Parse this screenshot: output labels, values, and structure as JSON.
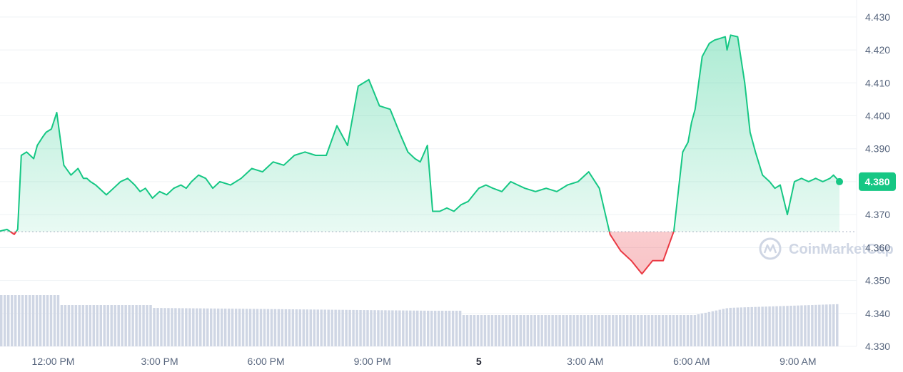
{
  "chart_data": {
    "type": "area",
    "baseline": 4.3648,
    "last_price_label": "4.380",
    "y_ticks": [
      "4.430",
      "4.420",
      "4.410",
      "4.400",
      "4.390",
      "4.380",
      "4.370",
      "4.360",
      "4.350",
      "4.340",
      "4.330"
    ],
    "ylim": [
      4.33,
      4.433
    ],
    "x_ticks": [
      {
        "label": "12:00 PM",
        "pos": 0.0,
        "bold": false
      },
      {
        "label": "3:00 PM",
        "pos": 3.0,
        "bold": false
      },
      {
        "label": "6:00 PM",
        "pos": 6.0,
        "bold": false
      },
      {
        "label": "9:00 PM",
        "pos": 9.0,
        "bold": false
      },
      {
        "label": "5",
        "pos": 12.0,
        "bold": true
      },
      {
        "label": "3:00 AM",
        "pos": 15.0,
        "bold": false
      },
      {
        "label": "6:00 AM",
        "pos": 18.0,
        "bold": false
      },
      {
        "label": "9:00 AM",
        "pos": 21.0,
        "bold": false
      }
    ],
    "x_range_hours": [
      -1.5,
      22.17
    ],
    "watermark": "CoinMarketCap",
    "colors": {
      "up": "#16c784",
      "down": "#ea3943",
      "grid": "#eff2f5",
      "volume": "#cfd6e4"
    },
    "series": [
      {
        "x": [
          -1.5,
          -1.3,
          -1.1,
          -1.0,
          -0.9,
          -0.75,
          -0.55,
          -0.45,
          -0.3,
          -0.2,
          -0.05,
          0.1,
          0.3,
          0.5,
          0.7,
          0.85,
          0.95,
          1.05,
          1.2,
          1.5,
          1.7,
          1.9,
          2.1,
          2.3,
          2.45,
          2.6,
          2.8,
          3.0,
          3.2,
          3.4,
          3.6,
          3.75,
          3.9,
          4.1,
          4.3,
          4.5,
          4.7,
          5.0,
          5.3,
          5.6,
          5.9,
          6.2,
          6.5,
          6.8,
          7.1,
          7.4,
          7.7,
          8.0,
          8.3,
          8.6,
          8.9,
          9.2,
          9.5,
          9.8,
          10.0,
          10.2,
          10.35,
          10.55,
          10.7,
          10.9,
          11.1,
          11.3,
          11.5,
          11.7,
          11.85,
          12.0,
          12.2,
          12.4,
          12.65,
          12.9,
          13.1,
          13.3,
          13.6,
          13.9,
          14.2,
          14.5,
          14.8,
          15.1,
          15.4,
          15.7,
          16.0,
          16.3,
          16.6,
          16.9,
          17.2,
          17.5,
          17.75,
          17.9,
          18.0,
          18.1,
          18.3,
          18.5,
          18.65,
          18.8,
          18.95,
          19.0,
          19.1,
          19.3,
          19.5,
          19.65,
          19.8,
          20.0,
          20.2,
          20.35,
          20.5,
          20.7,
          20.9,
          21.1,
          21.3,
          21.5,
          21.7,
          21.9,
          22.0,
          22.17
        ],
        "y": [
          4.365,
          4.3655,
          4.364,
          4.3655,
          4.388,
          4.389,
          4.387,
          4.391,
          4.3935,
          4.395,
          4.396,
          4.401,
          4.385,
          4.382,
          4.384,
          4.381,
          4.381,
          4.38,
          4.379,
          4.376,
          4.378,
          4.38,
          4.381,
          4.379,
          4.377,
          4.378,
          4.375,
          4.377,
          4.376,
          4.378,
          4.379,
          4.378,
          4.38,
          4.382,
          4.381,
          4.378,
          4.38,
          4.379,
          4.381,
          4.384,
          4.383,
          4.386,
          4.385,
          4.388,
          4.389,
          4.388,
          4.388,
          4.397,
          4.391,
          4.409,
          4.411,
          4.403,
          4.402,
          4.394,
          4.389,
          4.387,
          4.386,
          4.391,
          4.371,
          4.371,
          4.372,
          4.371,
          4.373,
          4.374,
          4.376,
          4.378,
          4.379,
          4.378,
          4.377,
          4.38,
          4.379,
          4.378,
          4.377,
          4.378,
          4.377,
          4.379,
          4.38,
          4.383,
          4.378,
          4.364,
          4.359,
          4.356,
          4.352,
          4.356,
          4.356,
          4.365,
          4.389,
          4.392,
          4.398,
          4.402,
          4.418,
          4.422,
          4.423,
          4.4235,
          4.424,
          4.42,
          4.4245,
          4.424,
          4.41,
          4.395,
          4.389,
          4.382,
          4.38,
          4.378,
          4.379,
          4.37,
          4.38,
          4.381,
          4.38,
          4.381,
          4.38,
          4.381,
          4.382,
          4.38
        ]
      }
    ]
  }
}
